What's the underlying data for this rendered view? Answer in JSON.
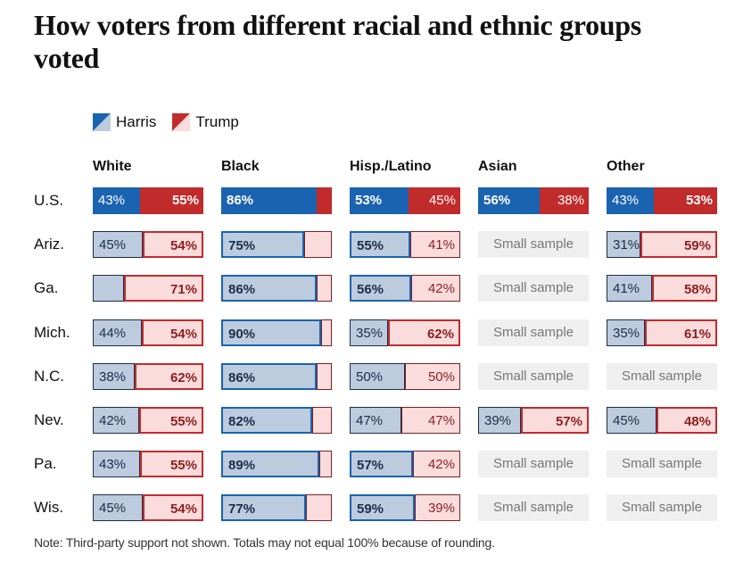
{
  "title": "How voters from different racial and ethnic groups voted",
  "colors": {
    "harris": "#1a63b0",
    "harris_light": "#bccbdd",
    "trump": "#c12b2b",
    "trump_light": "#fbdcdc",
    "small_sample_bg": "#efefef"
  },
  "legend": [
    {
      "label": "Harris",
      "icon": "harris-swatch-icon"
    },
    {
      "label": "Trump",
      "icon": "trump-swatch-icon"
    }
  ],
  "note": "Note: Third-party support not shown. Totals may not equal 100% because of rounding.",
  "chart_data": {
    "type": "bar",
    "subtype": "stacked-horizontal-small-multiples",
    "title": "How voters from different racial and ethnic groups voted",
    "groups": [
      "White",
      "Black",
      "Hisp./Latino",
      "Asian",
      "Other"
    ],
    "regions": [
      "U.S.",
      "Ariz.",
      "Ga.",
      "Mich.",
      "N.C.",
      "Nev.",
      "Pa.",
      "Wis."
    ],
    "series_names": [
      "Harris",
      "Trump"
    ],
    "small_sample_label": "Small sample",
    "note": "Note: Third-party support not shown. Totals may not equal 100% because of rounding.",
    "rows": [
      {
        "region": "U.S.",
        "cells": [
          {
            "harris": 43,
            "trump": 55,
            "harris_label": "43%",
            "trump_label": "55%"
          },
          {
            "harris": 86,
            "trump": 12,
            "harris_label": "86%",
            "trump_label": ""
          },
          {
            "harris": 53,
            "trump": 45,
            "harris_label": "53%",
            "trump_label": "45%"
          },
          {
            "harris": 56,
            "trump": 38,
            "harris_label": "56%",
            "trump_label": "38%"
          },
          {
            "harris": 43,
            "trump": 53,
            "harris_label": "43%",
            "trump_label": "53%"
          }
        ]
      },
      {
        "region": "Ariz.",
        "cells": [
          {
            "harris": 45,
            "trump": 54,
            "harris_label": "45%",
            "trump_label": "54%"
          },
          {
            "harris": 75,
            "trump": 23,
            "harris_label": "75%",
            "trump_label": ""
          },
          {
            "harris": 55,
            "trump": 41,
            "harris_label": "55%",
            "trump_label": "41%"
          },
          null,
          {
            "harris": 31,
            "trump": 59,
            "harris_label": "31%",
            "trump_label": "59%"
          }
        ]
      },
      {
        "region": "Ga.",
        "cells": [
          {
            "harris": 28,
            "trump": 71,
            "harris_label": "",
            "trump_label": "71%"
          },
          {
            "harris": 86,
            "trump": 12,
            "harris_label": "86%",
            "trump_label": ""
          },
          {
            "harris": 56,
            "trump": 42,
            "harris_label": "56%",
            "trump_label": "42%"
          },
          null,
          {
            "harris": 41,
            "trump": 58,
            "harris_label": "41%",
            "trump_label": "58%"
          }
        ]
      },
      {
        "region": "Mich.",
        "cells": [
          {
            "harris": 44,
            "trump": 54,
            "harris_label": "44%",
            "trump_label": "54%"
          },
          {
            "harris": 90,
            "trump": 8,
            "harris_label": "90%",
            "trump_label": ""
          },
          {
            "harris": 35,
            "trump": 62,
            "harris_label": "35%",
            "trump_label": "62%"
          },
          null,
          {
            "harris": 35,
            "trump": 61,
            "harris_label": "35%",
            "trump_label": "61%"
          }
        ]
      },
      {
        "region": "N.C.",
        "cells": [
          {
            "harris": 38,
            "trump": 62,
            "harris_label": "38%",
            "trump_label": "62%"
          },
          {
            "harris": 86,
            "trump": 12,
            "harris_label": "86%",
            "trump_label": ""
          },
          {
            "harris": 50,
            "trump": 50,
            "harris_label": "50%",
            "trump_label": "50%"
          },
          null,
          null
        ]
      },
      {
        "region": "Nev.",
        "cells": [
          {
            "harris": 42,
            "trump": 55,
            "harris_label": "42%",
            "trump_label": "55%"
          },
          {
            "harris": 82,
            "trump": 16,
            "harris_label": "82%",
            "trump_label": ""
          },
          {
            "harris": 47,
            "trump": 47,
            "harris_label": "47%",
            "trump_label": "47%"
          },
          {
            "harris": 39,
            "trump": 57,
            "harris_label": "39%",
            "trump_label": "57%"
          },
          {
            "harris": 45,
            "trump": 48,
            "harris_label": "45%",
            "trump_label": "48%"
          }
        ]
      },
      {
        "region": "Pa.",
        "cells": [
          {
            "harris": 43,
            "trump": 55,
            "harris_label": "43%",
            "trump_label": "55%"
          },
          {
            "harris": 89,
            "trump": 9,
            "harris_label": "89%",
            "trump_label": ""
          },
          {
            "harris": 57,
            "trump": 42,
            "harris_label": "57%",
            "trump_label": "42%"
          },
          null,
          null
        ]
      },
      {
        "region": "Wis.",
        "cells": [
          {
            "harris": 45,
            "trump": 54,
            "harris_label": "45%",
            "trump_label": "54%"
          },
          {
            "harris": 77,
            "trump": 21,
            "harris_label": "77%",
            "trump_label": ""
          },
          {
            "harris": 59,
            "trump": 39,
            "harris_label": "59%",
            "trump_label": "39%"
          },
          null,
          null
        ]
      }
    ],
    "xlim": [
      0,
      100
    ],
    "legend_position": "top-left"
  }
}
